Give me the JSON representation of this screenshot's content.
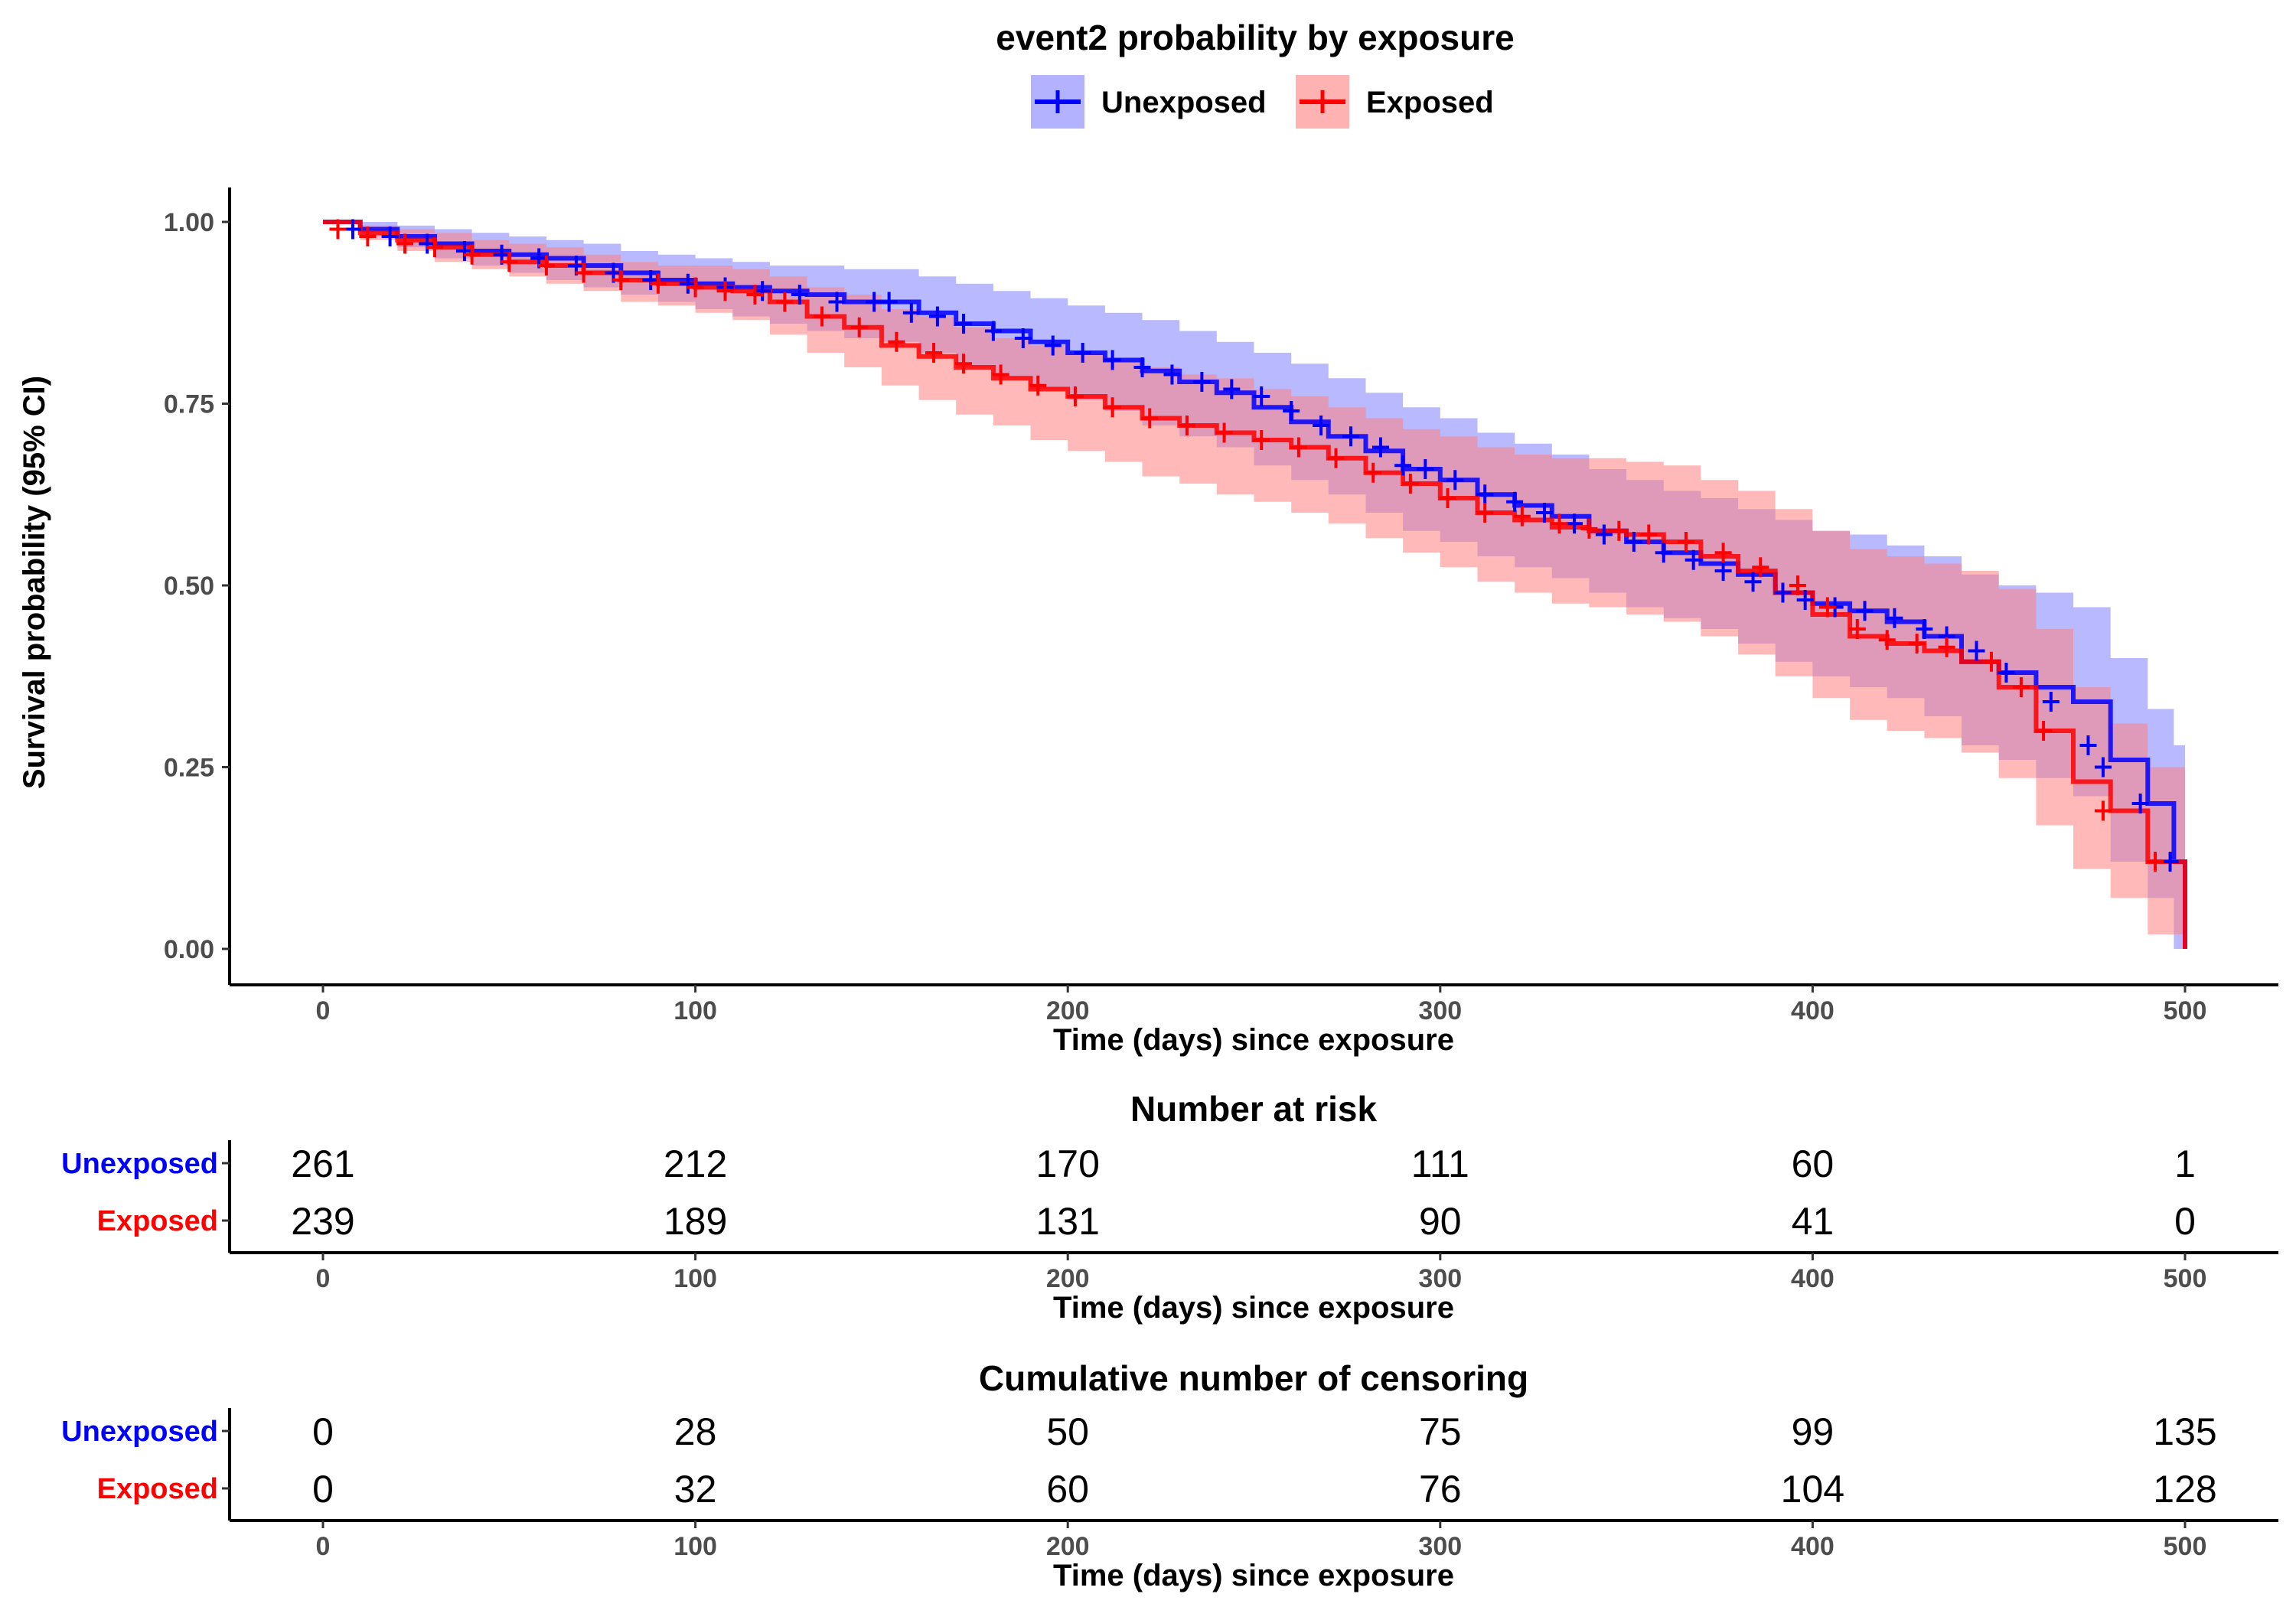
{
  "chart_data": [
    {
      "type": "line",
      "subtype": "kaplan-meier",
      "title": "event2 probability by exposure",
      "xlabel": "Time (days) since exposure",
      "ylabel": "Survival probability (95% CI)",
      "xlim": [
        0,
        500
      ],
      "ylim": [
        0,
        1
      ],
      "x_ticks": [
        0,
        100,
        200,
        300,
        400,
        500
      ],
      "x_tick_labels": [
        "0",
        "100",
        "200",
        "300",
        "400",
        "500"
      ],
      "y_ticks": [
        0,
        0.25,
        0.5,
        0.75,
        1
      ],
      "y_tick_labels": [
        "0.00",
        "0.25",
        "0.50",
        "0.75",
        "1.00"
      ],
      "grid": false,
      "legend_position": "top",
      "series": [
        {
          "name": "Unexposed",
          "color": "#0000ff",
          "band_color": "#7f7fff",
          "x": [
            0,
            10,
            20,
            30,
            40,
            50,
            60,
            70,
            80,
            90,
            100,
            110,
            120,
            130,
            140,
            150,
            160,
            170,
            180,
            190,
            200,
            210,
            220,
            230,
            240,
            250,
            260,
            270,
            280,
            290,
            300,
            310,
            320,
            330,
            340,
            350,
            360,
            370,
            380,
            390,
            400,
            410,
            420,
            430,
            440,
            450,
            460,
            470,
            480,
            490,
            497,
            500
          ],
          "y": [
            1.0,
            0.99,
            0.98,
            0.97,
            0.96,
            0.955,
            0.95,
            0.94,
            0.93,
            0.92,
            0.915,
            0.91,
            0.905,
            0.9,
            0.89,
            0.89,
            0.875,
            0.86,
            0.85,
            0.835,
            0.82,
            0.81,
            0.795,
            0.78,
            0.765,
            0.745,
            0.725,
            0.705,
            0.685,
            0.66,
            0.645,
            0.625,
            0.61,
            0.595,
            0.575,
            0.56,
            0.545,
            0.53,
            0.515,
            0.49,
            0.475,
            0.465,
            0.45,
            0.43,
            0.395,
            0.38,
            0.36,
            0.34,
            0.26,
            0.2,
            0.12,
            0.0
          ],
          "ci_lower": [
            1.0,
            0.98,
            0.965,
            0.95,
            0.94,
            0.93,
            0.92,
            0.91,
            0.9,
            0.89,
            0.88,
            0.87,
            0.86,
            0.85,
            0.84,
            0.835,
            0.82,
            0.8,
            0.785,
            0.77,
            0.755,
            0.74,
            0.72,
            0.705,
            0.69,
            0.665,
            0.645,
            0.625,
            0.6,
            0.575,
            0.56,
            0.54,
            0.525,
            0.51,
            0.49,
            0.47,
            0.455,
            0.44,
            0.42,
            0.395,
            0.375,
            0.36,
            0.345,
            0.32,
            0.28,
            0.26,
            0.235,
            0.21,
            0.12,
            0.07,
            0.0,
            0.0
          ],
          "ci_upper": [
            1.0,
            1.0,
            0.995,
            0.99,
            0.985,
            0.98,
            0.975,
            0.97,
            0.96,
            0.955,
            0.95,
            0.945,
            0.94,
            0.94,
            0.935,
            0.935,
            0.925,
            0.915,
            0.905,
            0.895,
            0.885,
            0.875,
            0.865,
            0.85,
            0.835,
            0.82,
            0.805,
            0.785,
            0.765,
            0.745,
            0.73,
            0.71,
            0.695,
            0.68,
            0.66,
            0.645,
            0.63,
            0.62,
            0.605,
            0.59,
            0.575,
            0.57,
            0.555,
            0.54,
            0.515,
            0.5,
            0.49,
            0.47,
            0.4,
            0.33,
            0.28,
            0.0
          ],
          "censor_x": [
            8,
            18,
            28,
            38,
            48,
            58,
            68,
            78,
            88,
            98,
            108,
            118,
            128,
            138,
            148,
            152,
            158,
            165,
            172,
            180,
            188,
            196,
            204,
            212,
            220,
            228,
            236,
            244,
            252,
            260,
            268,
            276,
            284,
            290,
            296,
            304,
            312,
            320,
            328,
            336,
            344,
            352,
            360,
            368,
            376,
            384,
            392,
            398,
            406,
            414,
            422,
            430,
            436,
            444,
            452,
            464,
            474,
            478,
            488,
            496
          ],
          "censor_y": [
            0.99,
            0.98,
            0.97,
            0.96,
            0.955,
            0.95,
            0.94,
            0.93,
            0.92,
            0.915,
            0.91,
            0.905,
            0.9,
            0.89,
            0.89,
            0.89,
            0.875,
            0.87,
            0.86,
            0.85,
            0.84,
            0.83,
            0.82,
            0.81,
            0.8,
            0.79,
            0.78,
            0.77,
            0.76,
            0.74,
            0.72,
            0.705,
            0.69,
            0.665,
            0.66,
            0.645,
            0.625,
            0.615,
            0.6,
            0.585,
            0.57,
            0.56,
            0.545,
            0.535,
            0.52,
            0.505,
            0.49,
            0.48,
            0.47,
            0.465,
            0.455,
            0.44,
            0.43,
            0.41,
            0.38,
            0.34,
            0.28,
            0.25,
            0.2,
            0.12
          ]
        },
        {
          "name": "Exposed",
          "color": "#ff0000",
          "band_color": "#ff7f7f",
          "x": [
            0,
            10,
            20,
            30,
            40,
            50,
            60,
            70,
            80,
            90,
            100,
            110,
            120,
            130,
            140,
            150,
            160,
            170,
            180,
            190,
            200,
            210,
            220,
            230,
            240,
            250,
            260,
            270,
            280,
            290,
            300,
            310,
            320,
            330,
            340,
            350,
            360,
            370,
            380,
            390,
            400,
            410,
            420,
            430,
            440,
            450,
            460,
            470,
            480,
            490,
            500
          ],
          "y": [
            1.0,
            0.985,
            0.975,
            0.965,
            0.955,
            0.945,
            0.94,
            0.93,
            0.92,
            0.915,
            0.91,
            0.905,
            0.89,
            0.87,
            0.855,
            0.83,
            0.815,
            0.8,
            0.785,
            0.77,
            0.76,
            0.745,
            0.73,
            0.72,
            0.71,
            0.7,
            0.69,
            0.675,
            0.655,
            0.64,
            0.62,
            0.6,
            0.59,
            0.58,
            0.575,
            0.57,
            0.56,
            0.54,
            0.52,
            0.49,
            0.46,
            0.43,
            0.42,
            0.41,
            0.395,
            0.36,
            0.3,
            0.23,
            0.19,
            0.12,
            0.0
          ],
          "ci_lower": [
            1.0,
            0.975,
            0.96,
            0.945,
            0.935,
            0.925,
            0.915,
            0.905,
            0.89,
            0.885,
            0.875,
            0.865,
            0.845,
            0.82,
            0.8,
            0.775,
            0.755,
            0.735,
            0.72,
            0.7,
            0.685,
            0.67,
            0.65,
            0.64,
            0.625,
            0.615,
            0.6,
            0.585,
            0.565,
            0.545,
            0.525,
            0.505,
            0.49,
            0.475,
            0.47,
            0.46,
            0.45,
            0.43,
            0.405,
            0.375,
            0.345,
            0.315,
            0.3,
            0.29,
            0.27,
            0.235,
            0.17,
            0.11,
            0.07,
            0.02,
            0.0
          ],
          "ci_upper": [
            1.0,
            0.995,
            0.99,
            0.985,
            0.975,
            0.97,
            0.965,
            0.955,
            0.945,
            0.94,
            0.94,
            0.935,
            0.925,
            0.91,
            0.9,
            0.88,
            0.87,
            0.855,
            0.84,
            0.83,
            0.82,
            0.81,
            0.8,
            0.79,
            0.785,
            0.77,
            0.76,
            0.745,
            0.73,
            0.715,
            0.705,
            0.69,
            0.68,
            0.675,
            0.675,
            0.67,
            0.665,
            0.645,
            0.63,
            0.605,
            0.575,
            0.55,
            0.54,
            0.53,
            0.52,
            0.495,
            0.44,
            0.36,
            0.31,
            0.25,
            0.0
          ],
          "censor_x": [
            4,
            12,
            22,
            30,
            40,
            50,
            60,
            70,
            80,
            90,
            100,
            108,
            116,
            124,
            134,
            144,
            154,
            164,
            172,
            182,
            192,
            202,
            212,
            222,
            232,
            242,
            252,
            262,
            272,
            282,
            292,
            302,
            312,
            322,
            332,
            340,
            348,
            356,
            366,
            376,
            386,
            396,
            404,
            412,
            420,
            428,
            436,
            448,
            456,
            462,
            478,
            492
          ],
          "censor_y": [
            0.99,
            0.98,
            0.97,
            0.965,
            0.955,
            0.945,
            0.94,
            0.93,
            0.92,
            0.915,
            0.91,
            0.905,
            0.9,
            0.89,
            0.87,
            0.855,
            0.835,
            0.82,
            0.805,
            0.79,
            0.775,
            0.76,
            0.745,
            0.73,
            0.72,
            0.71,
            0.7,
            0.69,
            0.675,
            0.655,
            0.64,
            0.62,
            0.6,
            0.595,
            0.585,
            0.578,
            0.575,
            0.57,
            0.56,
            0.545,
            0.525,
            0.5,
            0.47,
            0.44,
            0.425,
            0.42,
            0.415,
            0.395,
            0.36,
            0.3,
            0.19,
            0.12
          ]
        }
      ]
    },
    {
      "type": "table",
      "title": "Number at risk",
      "xlabel": "Time (days) since exposure",
      "x": [
        0,
        100,
        200,
        300,
        400,
        500
      ],
      "x_tick_labels": [
        "0",
        "100",
        "200",
        "300",
        "400",
        "500"
      ],
      "rows": [
        {
          "name": "Unexposed",
          "color": "#0000ff",
          "values": [
            "261",
            "212",
            "170",
            "111",
            "60",
            "1"
          ]
        },
        {
          "name": "Exposed",
          "color": "#ff0000",
          "values": [
            "239",
            "189",
            "131",
            "90",
            "41",
            "0"
          ]
        }
      ]
    },
    {
      "type": "table",
      "title": "Cumulative number of censoring",
      "xlabel": "Time (days) since exposure",
      "x": [
        0,
        100,
        200,
        300,
        400,
        500
      ],
      "x_tick_labels": [
        "0",
        "100",
        "200",
        "300",
        "400",
        "500"
      ],
      "rows": [
        {
          "name": "Unexposed",
          "color": "#0000ff",
          "values": [
            "0",
            "28",
            "50",
            "75",
            "99",
            "135"
          ]
        },
        {
          "name": "Exposed",
          "color": "#ff0000",
          "values": [
            "0",
            "32",
            "60",
            "76",
            "104",
            "128"
          ]
        }
      ]
    }
  ]
}
